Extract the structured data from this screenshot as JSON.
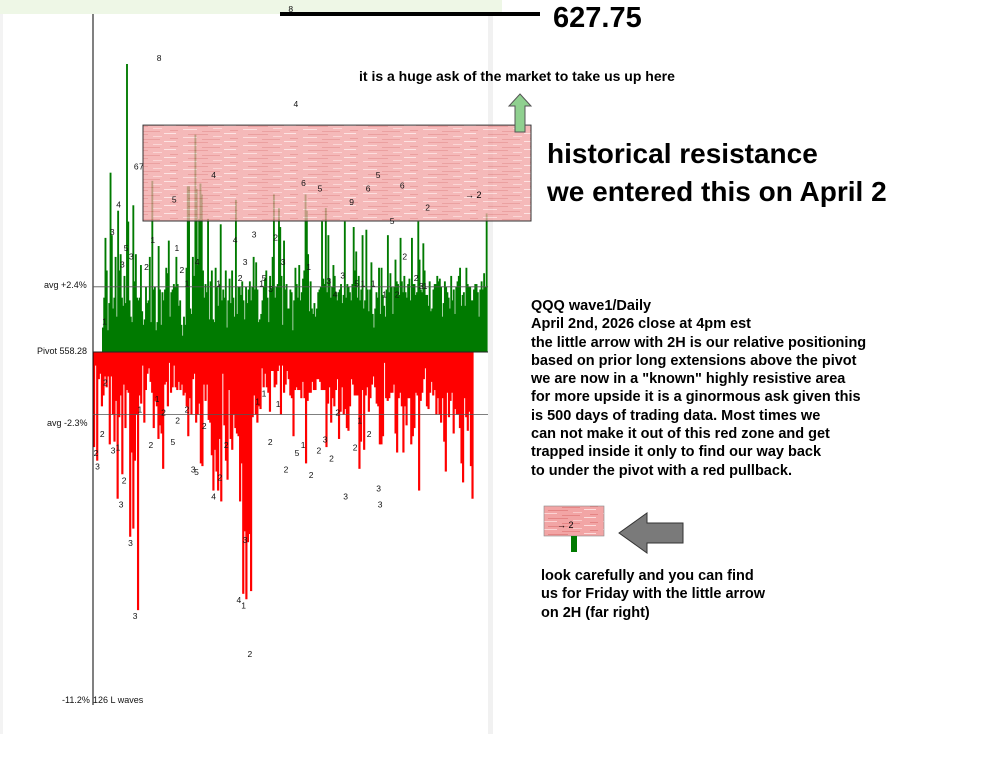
{
  "chart_data": {
    "type": "bar",
    "pivot": 558.28,
    "y_unit": "%",
    "ylim": [
      -11.2,
      12.4
    ],
    "price_target": "627.75",
    "price_target_change_pct": 12.44,
    "y_labels": {
      "avg_up": "avg +2.4%",
      "pivot": "Pivot 558.28",
      "avg_down": "avg -2.3%",
      "min": "-11.2%",
      "wave_count": "126 L waves"
    },
    "avg_up": 2.4,
    "avg_down": -2.3,
    "resistance_zone": [
      4.82,
      8.35
    ],
    "up_values": [
      0.9,
      2.0,
      4.2,
      3.0,
      0.8,
      1.8,
      6.6,
      4.3,
      1.6,
      2.0,
      3.5,
      1.3,
      5.2,
      3.0,
      3.6,
      2.0,
      1.7,
      2.8,
      1.8,
      10.6,
      4.8,
      1.9,
      1.3,
      1.1,
      5.4,
      2.6,
      3.6,
      2.0,
      1.9,
      2.0,
      3.2,
      1.5,
      1.0,
      1.2,
      2.4,
      1.8,
      1.9,
      3.5,
      1.1,
      6.3,
      2.3,
      2.4,
      0.8,
      1.1,
      3.9,
      2.3,
      1.0,
      2.2,
      1.9,
      2.3,
      3.1,
      2.9,
      4.1,
      1.3,
      2.2,
      2.3,
      2.5,
      2.4,
      3.5,
      2.5,
      1.7,
      1.9,
      1.0,
      0.6,
      1.3,
      1.0,
      3.1,
      6.1,
      6.1,
      1.6,
      1.4,
      3.5,
      2.8,
      8.0,
      6.0,
      3.2,
      4.9,
      6.2,
      5.8,
      3.0,
      2.0,
      2.5,
      2.2,
      4.9,
      1.2,
      2.6,
      3.0,
      1.2,
      1.1,
      3.1,
      2.4,
      1.7,
      2.5,
      4.7,
      1.9,
      2.3,
      2.0,
      3.0,
      0.9,
      1.9,
      2.7,
      1.8,
      3.0,
      2.0,
      1.3,
      5.6,
      1.4,
      2.4,
      2.4,
      2.1,
      2.6,
      1.9,
      1.2,
      2.4,
      1.8,
      2.3,
      2.6,
      1.9,
      2.4,
      3.5,
      2.3,
      3.3,
      2.3,
      1.1,
      1.2,
      1.4,
      1.9,
      2.4,
      2.7,
      3.0,
      2.0,
      1.1,
      2.8,
      2.3,
      3.5,
      5.8,
      2.0,
      2.4,
      2.5,
      5.3,
      4.6,
      2.8,
      1.0,
      4.1,
      2.3,
      2.5,
      1.6,
      1.6,
      2.3,
      2.2,
      0.8,
      1.9,
      3.1,
      2.5,
      2.0,
      3.2,
      1.9,
      2.2,
      2.7,
      3.0,
      5.8,
      5.2,
      3.6,
      1.5,
      2.6,
      1.6,
      1.4,
      1.8,
      1.3,
      1.6,
      2.2,
      2.3,
      2.4,
      4.8,
      2.7,
      2.5,
      5.3,
      2.2,
      4.3,
      2.7,
      2.0,
      2.4,
      3.2,
      2.8,
      2.2,
      1.9,
      2.2,
      2.3,
      2.5,
      1.8,
      2.1,
      4.8,
      2.0,
      2.5,
      2.4,
      2.2,
      1.9,
      2.5,
      4.6,
      3.0,
      3.7,
      2.0,
      2.8,
      1.9,
      2.3,
      4.3,
      1.6,
      1.9,
      4.5,
      2.3,
      1.5,
      2.3,
      3.3,
      1.4,
      0.9,
      1.6,
      2.2,
      2.0,
      3.1,
      1.4,
      3.1,
      2.1,
      1.7,
      1.3,
      2.3,
      4.3,
      2.2,
      2.9,
      2.4,
      1.4,
      2.4,
      3.4,
      2.6,
      2.5,
      2.1,
      4.2,
      2.6,
      2.2,
      2.8,
      2.2,
      2.0,
      2.5,
      2.7,
      1.9,
      4.2,
      2.5,
      2.5,
      2.1,
      2.2,
      4.8,
      3.4,
      2.3,
      2.2,
      4.0,
      3.0,
      2.1,
      2.1,
      1.7,
      2.6,
      1.5,
      1.6,
      2.3,
      2.5,
      2.5,
      2.8,
      2.6,
      2.7,
      2.4,
      1.3,
      1.8,
      2.6,
      2.4,
      2.2,
      2.0,
      1.6,
      2.8,
      1.9,
      2.3,
      1.4,
      2.4,
      2.6,
      2.8,
      3.1,
      1.7,
      2.1,
      2.2,
      1.7,
      3.1,
      2.5,
      2.4,
      2.4,
      1.9,
      1.9,
      2.3,
      2.5,
      2.5,
      2.2,
      1.3,
      2.3,
      2.6,
      2.3,
      2.9,
      2.4,
      5.1
    ],
    "down_values": [
      -3.5,
      -0.5,
      -4.0,
      -1.0,
      -0.8,
      -2.0,
      -1.6,
      -0.9,
      -1.3,
      -0.9,
      -3.4,
      -0.9,
      -2.3,
      -3.3,
      -1.8,
      -5.4,
      -2.4,
      -1.6,
      -4.5,
      -1.2,
      -2.8,
      -1.4,
      -1.5,
      -6.8,
      -3.7,
      -6.5,
      -4.0,
      -2.3,
      -9.5,
      -1.6,
      -1.9,
      -0.5,
      -2.6,
      -1.4,
      -0.8,
      -0.6,
      -1.1,
      -1.5,
      -2.8,
      -1.8,
      -2.0,
      -3.2,
      -2.7,
      -3.0,
      -4.3,
      -1.2,
      -1.1,
      -2.0,
      -0.4,
      -1.5,
      -1.3,
      -0.5,
      -1.3,
      -1.4,
      -1.1,
      -1.4,
      -1.2,
      -1.6,
      -1.5,
      -2.0,
      -3.1,
      -1.7,
      -2.3,
      -1.0,
      -0.8,
      -2.6,
      -2.3,
      -1.9,
      -4.1,
      -4.2,
      -1.2,
      -1.8,
      -1.2,
      -2.5,
      -2.6,
      -3.8,
      -5.1,
      -3.6,
      -4.4,
      -5.1,
      -3.2,
      -5.5,
      -0.8,
      -2.7,
      -4.0,
      -4.7,
      -1.4,
      -3.2,
      -3.6,
      -2.3,
      -2.8,
      -3.0,
      -3.1,
      -5.5,
      -4.1,
      -8.9,
      -6.6,
      -9.1,
      -7.0,
      -6.7,
      -8.8,
      -2.4,
      -1.6,
      -2.3,
      -2.6,
      -2.0,
      -2.1,
      -0.6,
      -1.3,
      -0.8,
      -1.3,
      -1.5,
      -2.2,
      -0.7,
      -0.7,
      -1.3,
      -1.2,
      -0.7,
      -0.5,
      -2.3,
      -0.5,
      -1.5,
      -1.2,
      -0.7,
      -1.0,
      -1.6,
      -1.7,
      -3.1,
      -1.4,
      -1.3,
      -1.4,
      -1.4,
      -1.7,
      -1.1,
      -1.7,
      -4.1,
      -1.8,
      -1.5,
      -1.5,
      -1.1,
      -1.4,
      -1.4,
      -1.0,
      -1.0,
      -1.1,
      -1.4,
      -1.4,
      -1.4,
      -3.5,
      -1.9,
      -1.3,
      -2.6,
      -1.7,
      -2.0,
      -1.4,
      -1.0,
      -3.2,
      -2.2,
      -1.3,
      -2.3,
      -2.1,
      -2.8,
      -2.9,
      -2.0,
      -1.0,
      -1.2,
      -1.6,
      -1.6,
      -1.6,
      -4.3,
      -3.3,
      -1.4,
      -3.6,
      -1.6,
      -1.3,
      -2.2,
      -1.7,
      -1.2,
      -0.9,
      -1.3,
      -1.9,
      -2.0,
      -3.4,
      -3.4,
      -3.1,
      -0.4,
      -1.7,
      -1.8,
      -1.7,
      -1.5,
      -1.5,
      -1.2,
      -3.0,
      -3.7,
      -1.7,
      -1.5,
      -2.0,
      -3.7,
      -2.0,
      -2.7,
      -1.7,
      -1.7,
      -3.4,
      -3.1,
      -2.8,
      -1.5,
      -1.6,
      -5.1,
      -1.8,
      -1.5,
      -1.0,
      -0.6,
      -2.0,
      -2.1,
      -1.5,
      -1.1,
      -1.6,
      -1.4,
      -2.3,
      -1.7,
      -2.3,
      -2.6,
      -1.7,
      -3.3,
      -4.4,
      -1.5,
      -2.4,
      -1.8,
      -1.5,
      -3.0,
      -2.1,
      -2.3,
      -2.3,
      -2.8,
      -4.1,
      -4.8,
      -1.7,
      -2.4,
      -2.9,
      -2.2,
      -4.2,
      -5.4
    ],
    "up_labels": [
      {
        "t": "1",
        "i": 1,
        "v": 0.9
      },
      {
        "t": "3",
        "i": 7,
        "v": 4.2
      },
      {
        "t": "4",
        "i": 12,
        "v": 5.2
      },
      {
        "t": "3",
        "i": 15,
        "v": 3.0
      },
      {
        "t": "5",
        "i": 18,
        "v": 3.6
      },
      {
        "t": "3",
        "i": 22,
        "v": 3.3
      },
      {
        "t": "6",
        "i": 26,
        "v": 6.6
      },
      {
        "t": "7",
        "i": 30,
        "v": 6.6
      },
      {
        "t": "2",
        "i": 34,
        "v": 2.9
      },
      {
        "t": "1",
        "i": 39,
        "v": 3.9
      },
      {
        "t": "8",
        "i": 44,
        "v": 10.6
      },
      {
        "t": "5",
        "i": 56,
        "v": 5.4
      },
      {
        "t": "1",
        "i": 58,
        "v": 3.6
      },
      {
        "t": "2",
        "i": 62,
        "v": 2.8
      },
      {
        "t": "1",
        "i": 66,
        "v": 2.3
      },
      {
        "t": "4",
        "i": 74,
        "v": 3.1
      },
      {
        "t": "4",
        "i": 87,
        "v": 6.3
      },
      {
        "t": "1",
        "i": 91,
        "v": 2.3
      },
      {
        "t": "4",
        "i": 104,
        "v": 3.9
      },
      {
        "t": "2",
        "i": 108,
        "v": 2.5
      },
      {
        "t": "3",
        "i": 112,
        "v": 3.1
      },
      {
        "t": "3",
        "i": 119,
        "v": 4.1
      },
      {
        "t": "1",
        "i": 125,
        "v": 2.3
      },
      {
        "t": "5",
        "i": 127,
        "v": 2.5
      },
      {
        "t": "3",
        "i": 132,
        "v": 2.1
      },
      {
        "t": "2",
        "i": 136,
        "v": 4.0
      },
      {
        "t": "3",
        "i": 142,
        "v": 3.1
      },
      {
        "t": "8",
        "i": 148,
        "v": 12.4
      },
      {
        "t": "4",
        "i": 152,
        "v": 8.9
      },
      {
        "t": "6",
        "i": 158,
        "v": 6.0
      },
      {
        "t": "1",
        "i": 162,
        "v": 2.9
      },
      {
        "t": "5",
        "i": 171,
        "v": 5.8
      },
      {
        "t": "3",
        "i": 178,
        "v": 2.4
      },
      {
        "t": "4",
        "i": 183,
        "v": 1.9
      },
      {
        "t": "3",
        "i": 189,
        "v": 2.6
      },
      {
        "t": "9",
        "i": 196,
        "v": 5.3
      },
      {
        "t": "5",
        "i": 200,
        "v": 2.3
      },
      {
        "t": "1",
        "i": 205,
        "v": 2.3
      },
      {
        "t": "6",
        "i": 209,
        "v": 5.8
      },
      {
        "t": "1",
        "i": 213,
        "v": 2.3
      },
      {
        "t": "5",
        "i": 217,
        "v": 6.3
      },
      {
        "t": "1",
        "i": 222,
        "v": 1.9
      },
      {
        "t": "5",
        "i": 228,
        "v": 4.6
      },
      {
        "t": "2",
        "i": 232,
        "v": 1.9
      },
      {
        "t": "6",
        "i": 236,
        "v": 5.9
      },
      {
        "t": "2",
        "i": 238,
        "v": 3.3
      },
      {
        "t": "2",
        "i": 247,
        "v": 2.5
      },
      {
        "t": "3",
        "i": 251,
        "v": 2.2
      },
      {
        "t": "1",
        "i": 254,
        "v": 2.2
      },
      {
        "t": "2",
        "i": 256,
        "v": 5.1
      }
    ],
    "down_labels": [
      {
        "t": "2",
        "i": 1,
        "v": -3.5
      },
      {
        "t": "3",
        "i": 2,
        "v": -4.0
      },
      {
        "t": "2",
        "i": 5,
        "v": -2.8
      },
      {
        "t": "2",
        "i": 7,
        "v": -0.9
      },
      {
        "t": "3",
        "i": 12,
        "v": -3.4
      },
      {
        "t": "1",
        "i": 15,
        "v": -3.3
      },
      {
        "t": "3",
        "i": 17,
        "v": -5.4
      },
      {
        "t": "2",
        "i": 19,
        "v": -4.5
      },
      {
        "t": "3",
        "i": 23,
        "v": -6.8
      },
      {
        "t": "3",
        "i": 26,
        "v": -9.5
      },
      {
        "t": "1",
        "i": 29,
        "v": -1.9
      },
      {
        "t": "2",
        "i": 36,
        "v": -3.2
      },
      {
        "t": "1",
        "i": 40,
        "v": -1.5
      },
      {
        "t": "2",
        "i": 44,
        "v": -2.0
      },
      {
        "t": "5",
        "i": 50,
        "v": -3.1
      },
      {
        "t": "2",
        "i": 53,
        "v": -2.3
      },
      {
        "t": "2",
        "i": 59,
        "v": -1.9
      },
      {
        "t": "3",
        "i": 63,
        "v": -4.1
      },
      {
        "t": "5",
        "i": 65,
        "v": -4.2
      },
      {
        "t": "2",
        "i": 70,
        "v": -2.5
      },
      {
        "t": "4",
        "i": 76,
        "v": -5.1
      },
      {
        "t": "2",
        "i": 80,
        "v": -4.4
      },
      {
        "t": "2",
        "i": 84,
        "v": -3.2
      },
      {
        "t": "4",
        "i": 92,
        "v": -8.9
      },
      {
        "t": "1",
        "i": 95,
        "v": -9.1
      },
      {
        "t": "3",
        "i": 96,
        "v": -6.7
      },
      {
        "t": "2",
        "i": 99,
        "v": -10.9
      },
      {
        "t": "1",
        "i": 104,
        "v": -1.6
      },
      {
        "t": "1",
        "i": 108,
        "v": -1.3
      },
      {
        "t": "2",
        "i": 112,
        "v": -3.1
      },
      {
        "t": "1",
        "i": 117,
        "v": -1.7
      },
      {
        "t": "2",
        "i": 122,
        "v": -4.1
      },
      {
        "t": "5",
        "i": 129,
        "v": -3.5
      },
      {
        "t": "1",
        "i": 133,
        "v": -3.2
      },
      {
        "t": "2",
        "i": 138,
        "v": -4.3
      },
      {
        "t": "2",
        "i": 143,
        "v": -3.4
      },
      {
        "t": "3",
        "i": 147,
        "v": -3.0
      },
      {
        "t": "2",
        "i": 151,
        "v": -3.7
      },
      {
        "t": "2",
        "i": 155,
        "v": -2.0
      },
      {
        "t": "3",
        "i": 160,
        "v": -5.1
      },
      {
        "t": "2",
        "i": 166,
        "v": -3.3
      },
      {
        "t": "1",
        "i": 169,
        "v": -2.3
      },
      {
        "t": "2",
        "i": 175,
        "v": -2.8
      },
      {
        "t": "3",
        "i": 181,
        "v": -4.8
      },
      {
        "t": "3",
        "i": 182,
        "v": -5.4
      }
    ],
    "arrow_label": "→ 2"
  },
  "annotations": {
    "price_label": "627.75",
    "ask_note": "it is a huge ask of the market to take us up here",
    "resistance_title": "historical resistance",
    "resistance_subtitle": "we entered this on April 2",
    "info_lines": [
      "QQQ wave1/Daily",
      "April 2nd, 2026 close at 4pm est",
      "the little arrow with 2H is our relative positioning",
      "based on prior long extensions above the pivot",
      "we are now in a \"known\" highly resistive area",
      "for more upside it is a ginormous ask given this",
      "is 500 days of trading data.  Most times we",
      "can not make it out of this red zone and get",
      "trapped inside it only to find our way back",
      "to under the pivot with a red pullback."
    ],
    "inset_label": "→ 2",
    "friday_note_lines": [
      "look carefully and you can find",
      "us for Friday with the little arrow",
      "on 2H (far right)"
    ]
  },
  "colors": {
    "up_bar": "#007a00",
    "down_bar": "#ff0000",
    "resistance_zone": "#ef8f8f",
    "resistance_border": "#333333",
    "up_arrow_fill": "#8fd08f",
    "left_arrow_fill": "#7a7a7a"
  }
}
